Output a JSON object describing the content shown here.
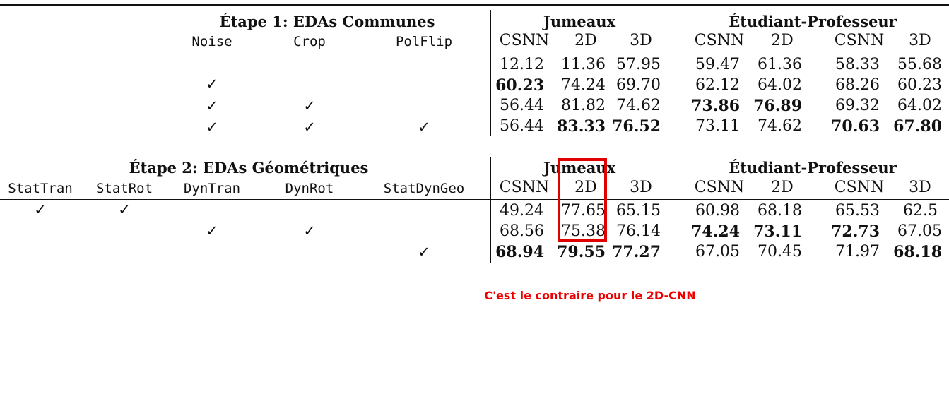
{
  "stage1": {
    "title": "Étape 1: EDAs Communes",
    "columns": [
      "Noise",
      "Crop",
      "PolFlip"
    ],
    "group_a": "Jumeaux",
    "group_b": "Étudiant-Professeur",
    "metric_headers": [
      "CSNN",
      "2D",
      "3D",
      "CSNN",
      "2D",
      "CSNN",
      "3D"
    ],
    "checks": [
      [
        "",
        "",
        ""
      ],
      [
        "✓",
        "",
        ""
      ],
      [
        "✓",
        "✓",
        ""
      ],
      [
        "✓",
        "✓",
        "✓"
      ]
    ],
    "rows": [
      [
        "12.12",
        "11.36",
        "57.95",
        "59.47",
        "61.36",
        "58.33",
        "55.68"
      ],
      [
        "60.23",
        "74.24",
        "69.70",
        "62.12",
        "64.02",
        "68.26",
        "60.23"
      ],
      [
        "56.44",
        "81.82",
        "74.62",
        "73.86",
        "76.89",
        "69.32",
        "64.02"
      ],
      [
        "56.44",
        "83.33",
        "76.52",
        "73.11",
        "74.62",
        "70.63",
        "67.80"
      ]
    ]
  },
  "stage2": {
    "title": "Étape 2: EDAs Géométriques",
    "columns": [
      "StatTran",
      "StatRot",
      "DynTran",
      "DynRot",
      "StatDynGeo"
    ],
    "group_a": "Jumeaux",
    "group_b": "Étudiant-Professeur",
    "metric_headers": [
      "CSNN",
      "2D",
      "3D",
      "CSNN",
      "2D",
      "CSNN",
      "3D"
    ],
    "checks": [
      [
        "✓",
        "✓",
        "",
        "",
        ""
      ],
      [
        "",
        "",
        "✓",
        "✓",
        ""
      ],
      [
        "",
        "",
        "",
        "",
        "✓"
      ]
    ],
    "rows": [
      [
        "49.24",
        "77.65",
        "65.15",
        "60.98",
        "68.18",
        "65.53",
        "62.5"
      ],
      [
        "68.56",
        "75.38",
        "76.14",
        "74.24",
        "73.11",
        "72.73",
        "67.05"
      ],
      [
        "68.94",
        "79.55",
        "77.27",
        "67.05",
        "70.45",
        "71.97",
        "68.18"
      ]
    ]
  },
  "annotation": {
    "note": "C'est le contraire pour le 2D-CNN",
    "color": "#ee0000"
  }
}
